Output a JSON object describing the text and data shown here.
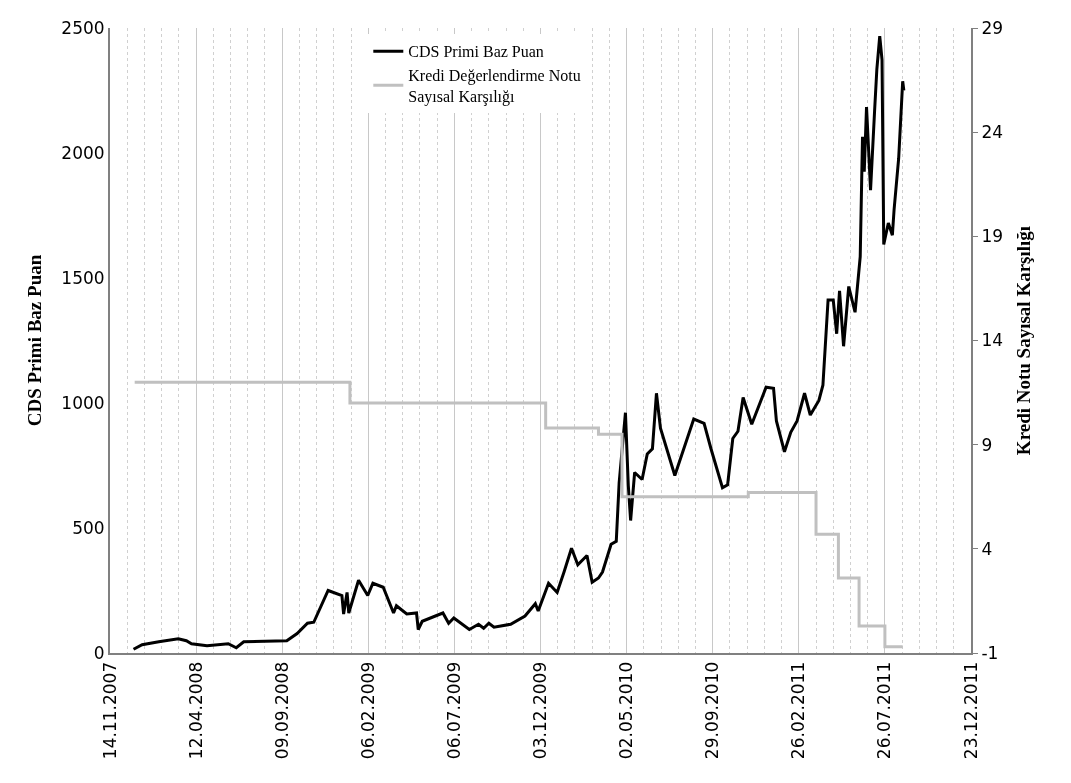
{
  "chart_data": {
    "type": "line",
    "ylabel": "CDS Primi Baz Puan",
    "y2label": "Kredi Notu Sayısal Karşılığı",
    "xlim": [
      "2007-11-14",
      "2011-12-23"
    ],
    "xticks": [
      {
        "value": "2007-11-14",
        "label": "14.11.2007"
      },
      {
        "value": "2008-04-12",
        "label": "12.04.2008"
      },
      {
        "value": "2008-09-09",
        "label": "09.09.2008"
      },
      {
        "value": "2009-02-06",
        "label": "06.02.2009"
      },
      {
        "value": "2009-07-06",
        "label": "06.07.2009"
      },
      {
        "value": "2009-12-03",
        "label": "03.12.2009"
      },
      {
        "value": "2010-05-02",
        "label": "02.05.2010"
      },
      {
        "value": "2010-09-29",
        "label": "29.09.2010"
      },
      {
        "value": "2011-02-26",
        "label": "26.02.2011"
      },
      {
        "value": "2011-07-26",
        "label": "26.07.2011"
      },
      {
        "value": "2011-12-23",
        "label": "23.12.2011"
      }
    ],
    "ylim": [
      0,
      2500
    ],
    "yticks": [
      0,
      500,
      1000,
      1500,
      2000,
      2500
    ],
    "y2lim": [
      -1,
      29
    ],
    "y2ticks": [
      -1,
      4,
      9,
      14,
      19,
      24,
      29
    ],
    "grid": "x",
    "legend": "top",
    "series": [
      {
        "name": "CDS Primi Baz Puan",
        "color": "#000000",
        "x": [
          "2007-12-25",
          "2008-01-09",
          "2008-02-07",
          "2008-03-12",
          "2008-03-26",
          "2008-04-04",
          "2008-05-01",
          "2008-06-07",
          "2008-06-21",
          "2008-07-04",
          "2008-09-17",
          "2008-10-05",
          "2008-10-23",
          "2008-11-03",
          "2008-11-28",
          "2008-12-22",
          "2008-12-25",
          "2008-12-31",
          "2009-01-03",
          "2009-01-20",
          "2009-02-05",
          "2009-02-14",
          "2009-03-04",
          "2009-03-22",
          "2009-03-27",
          "2009-04-14",
          "2009-05-01",
          "2009-05-04",
          "2009-05-11",
          "2009-06-16",
          "2009-06-26",
          "2009-07-05",
          "2009-08-01",
          "2009-08-17",
          "2009-08-26",
          "2009-09-04",
          "2009-09-13",
          "2009-10-12",
          "2009-11-06",
          "2009-11-24",
          "2009-11-29",
          "2009-12-17",
          "2010-01-01",
          "2010-01-13",
          "2010-01-26",
          "2010-02-06",
          "2010-02-22",
          "2010-03-03",
          "2010-03-14",
          "2010-03-21",
          "2010-04-05",
          "2010-04-14",
          "2010-04-19",
          "2010-04-30",
          "2010-05-05",
          "2010-05-09",
          "2010-05-16",
          "2010-05-29",
          "2010-06-07",
          "2010-06-16",
          "2010-06-23",
          "2010-06-30",
          "2010-07-25",
          "2010-08-27",
          "2010-09-14",
          "2010-09-26",
          "2010-10-16",
          "2010-10-25",
          "2010-11-03",
          "2010-11-12",
          "2010-11-21",
          "2010-12-06",
          "2010-12-31",
          "2011-01-13",
          "2011-01-18",
          "2011-02-01",
          "2011-02-12",
          "2011-02-23",
          "2011-03-08",
          "2011-03-18",
          "2011-04-02",
          "2011-04-09",
          "2011-04-18",
          "2011-04-27",
          "2011-05-03",
          "2011-05-08",
          "2011-05-15",
          "2011-05-24",
          "2011-06-04",
          "2011-06-13",
          "2011-06-17",
          "2011-06-20",
          "2011-06-24",
          "2011-07-01",
          "2011-07-08",
          "2011-07-12",
          "2011-07-17",
          "2011-07-21",
          "2011-07-24",
          "2011-08-01",
          "2011-08-08",
          "2011-08-11",
          "2011-08-19",
          "2011-08-26",
          "2011-08-28"
        ],
        "values": [
          15,
          33,
          45,
          57,
          49,
          37,
          29,
          37,
          21,
          45,
          49,
          78,
          119,
          123,
          250,
          230,
          156,
          242,
          160,
          291,
          230,
          279,
          263,
          160,
          189,
          156,
          160,
          94,
          127,
          160,
          119,
          140,
          94,
          115,
          99,
          119,
          103,
          115,
          148,
          197,
          168,
          279,
          242,
          324,
          419,
          353,
          390,
          283,
          300,
          324,
          435,
          447,
          681,
          961,
          669,
          530,
          722,
          694,
          796,
          817,
          1039,
          899,
          710,
          936,
          919,
          817,
          661,
          673,
          858,
          887,
          1022,
          915,
          1063,
          1059,
          928,
          805,
          883,
          928,
          1039,
          952,
          1010,
          1071,
          1412,
          1412,
          1277,
          1449,
          1227,
          1466,
          1363,
          1585,
          2065,
          1925,
          2184,
          1851,
          2167,
          2336,
          2467,
          2373,
          1634,
          1720,
          1671,
          1773,
          1979,
          2287,
          2250
        ]
      },
      {
        "name": "Kredi Değerlendirme Notu Sayısal Karşılığı",
        "color": "#c0c0c0",
        "type": "step",
        "axis": "y2",
        "x": [
          "2007-12-27",
          "2009-01-05",
          "2009-12-12",
          "2010-03-14",
          "2010-04-24",
          "2010-11-30",
          "2011-03-28",
          "2011-05-06",
          "2011-06-11",
          "2011-07-26",
          "2011-08-26"
        ],
        "values": [
          12,
          11,
          9.8,
          9.5,
          6.5,
          6.7,
          4.7,
          2.6,
          0.3,
          -0.7,
          -0.7
        ]
      }
    ]
  }
}
